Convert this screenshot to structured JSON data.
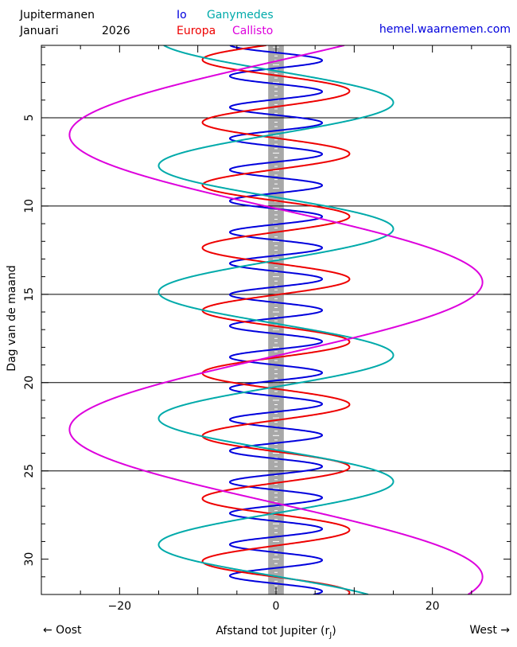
{
  "header": {
    "title": "Jupitermanen",
    "month": "Januari",
    "year": "2026",
    "site": "hemel.waarnemen.com"
  },
  "footer": {
    "left_arrow": "← Oost",
    "right_arrow": "West →"
  },
  "colors": {
    "Io": "#0000dd",
    "Europa": "#ee0000",
    "Ganymedes": "#00aaaa",
    "Callisto": "#dd00dd",
    "jupiter_band": "#a8a8a8"
  },
  "chart_data": {
    "type": "line",
    "orientation": "vertical-time",
    "xlabel": "Afstand tot Jupiter (r",
    "xlabel_sub": "J",
    "xlabel_end": ")",
    "ylabel": "Dag van de maand",
    "xlim": [
      -30,
      30
    ],
    "ylim": [
      32,
      0.9
    ],
    "xticks": [
      -20,
      0,
      20
    ],
    "xtick_labels": [
      "−20",
      "0",
      "20"
    ],
    "yticks": [
      5,
      10,
      15,
      20,
      25,
      30
    ],
    "ytick_labels": [
      "5",
      "10",
      "15",
      "20",
      "25",
      "30"
    ],
    "gridlines_y": [
      5,
      10,
      15,
      20,
      25
    ],
    "jupiter_band": [
      -1,
      1
    ],
    "legend": {
      "row1": [
        "Io",
        "Ganymedes"
      ],
      "row2": [
        "Europa",
        "Callisto"
      ]
    },
    "series": [
      {
        "name": "Io",
        "amplitude": 5.9,
        "period_days": 1.769,
        "phase_day": 1.31
      },
      {
        "name": "Europa",
        "amplitude": 9.4,
        "period_days": 3.551,
        "phase_day": 2.6
      },
      {
        "name": "Ganymedes",
        "amplitude": 15.0,
        "period_days": 7.155,
        "phase_day": 2.35
      },
      {
        "name": "Callisto",
        "amplitude": 26.4,
        "period_days": 16.689,
        "phase_day": 10.14
      }
    ]
  }
}
